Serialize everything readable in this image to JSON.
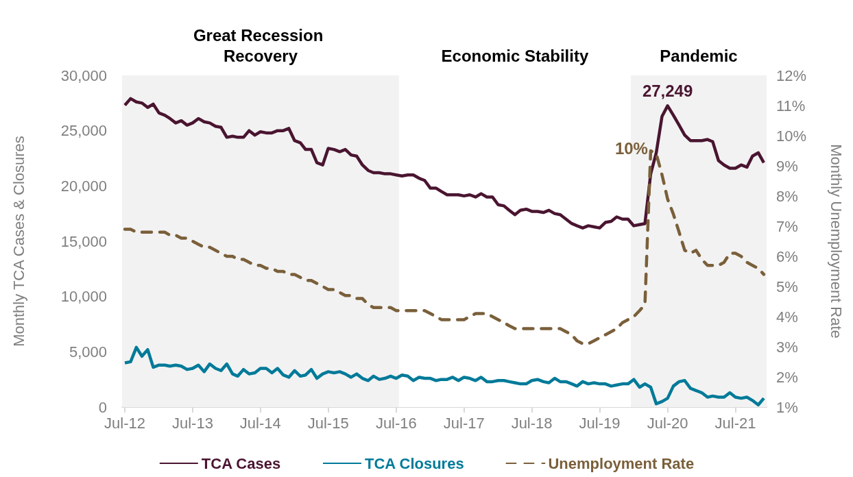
{
  "chart_data": {
    "type": "line",
    "xlabel": null,
    "ylabel": "Monthly TCA Cases & Closures",
    "y2label": "Monthly Unemployment Rate",
    "x": [
      "2012-07",
      "2012-08",
      "2012-09",
      "2012-10",
      "2012-11",
      "2012-12",
      "2013-01",
      "2013-02",
      "2013-03",
      "2013-04",
      "2013-05",
      "2013-06",
      "2013-07",
      "2013-08",
      "2013-09",
      "2013-10",
      "2013-11",
      "2013-12",
      "2014-01",
      "2014-02",
      "2014-03",
      "2014-04",
      "2014-05",
      "2014-06",
      "2014-07",
      "2014-08",
      "2014-09",
      "2014-10",
      "2014-11",
      "2014-12",
      "2015-01",
      "2015-02",
      "2015-03",
      "2015-04",
      "2015-05",
      "2015-06",
      "2015-07",
      "2015-08",
      "2015-09",
      "2015-10",
      "2015-11",
      "2015-12",
      "2016-01",
      "2016-02",
      "2016-03",
      "2016-04",
      "2016-05",
      "2016-06",
      "2016-07",
      "2016-08",
      "2016-09",
      "2016-10",
      "2016-11",
      "2016-12",
      "2017-01",
      "2017-02",
      "2017-03",
      "2017-04",
      "2017-05",
      "2017-06",
      "2017-07",
      "2017-08",
      "2017-09",
      "2017-10",
      "2017-11",
      "2017-12",
      "2018-01",
      "2018-02",
      "2018-03",
      "2018-04",
      "2018-05",
      "2018-06",
      "2018-07",
      "2018-08",
      "2018-09",
      "2018-10",
      "2018-11",
      "2018-12",
      "2019-01",
      "2019-02",
      "2019-03",
      "2019-04",
      "2019-05",
      "2019-06",
      "2019-07",
      "2019-08",
      "2019-09",
      "2019-10",
      "2019-11",
      "2019-12",
      "2020-01",
      "2020-02",
      "2020-03",
      "2020-04",
      "2020-05",
      "2020-06",
      "2020-07",
      "2020-08",
      "2020-09",
      "2020-10",
      "2020-11",
      "2020-12",
      "2021-01",
      "2021-02",
      "2021-03",
      "2021-04",
      "2021-05",
      "2021-06",
      "2021-07",
      "2021-08",
      "2021-09",
      "2021-10",
      "2021-11",
      "2021-12"
    ],
    "series": [
      {
        "name": "TCA Cases",
        "color": "#4a1530",
        "values": [
          27300,
          27900,
          27600,
          27500,
          27100,
          27400,
          26600,
          26400,
          26100,
          25700,
          25900,
          25500,
          25700,
          26100,
          25800,
          25700,
          25400,
          25300,
          24400,
          24500,
          24400,
          24400,
          25000,
          24600,
          24900,
          24800,
          24800,
          25000,
          25000,
          25200,
          24100,
          23900,
          23300,
          23300,
          22100,
          21900,
          23400,
          23300,
          23100,
          23300,
          22800,
          22700,
          21900,
          21400,
          21200,
          21200,
          21100,
          21100,
          21000,
          20900,
          21000,
          21000,
          20700,
          20500,
          19800,
          19800,
          19500,
          19200,
          19200,
          19200,
          19100,
          19200,
          19000,
          19300,
          19000,
          19000,
          18300,
          18200,
          17800,
          17400,
          17800,
          17900,
          17700,
          17700,
          17600,
          17800,
          17500,
          17400,
          17000,
          16600,
          16400,
          16200,
          16400,
          16300,
          16200,
          16700,
          16800,
          17200,
          17000,
          17000,
          16400,
          16500,
          16600,
          21100,
          23000,
          26300,
          27249,
          26400,
          25500,
          24600,
          24100,
          24100,
          24100,
          24200,
          24000,
          22300,
          21900,
          21600,
          21600,
          21900,
          21700,
          22700,
          23000,
          22100
        ]
      },
      {
        "name": "TCA Closures",
        "color": "#007a99",
        "values": [
          4000,
          4100,
          5400,
          4600,
          5200,
          3600,
          3800,
          3800,
          3700,
          3800,
          3700,
          3400,
          3500,
          3800,
          3200,
          3900,
          3500,
          3300,
          3900,
          3000,
          2800,
          3400,
          3000,
          3100,
          3500,
          3500,
          3100,
          3500,
          2900,
          2700,
          3300,
          2800,
          2900,
          3400,
          2600,
          3000,
          3200,
          3100,
          3200,
          3000,
          2700,
          3000,
          2600,
          2400,
          2800,
          2500,
          2600,
          2800,
          2600,
          2900,
          2800,
          2400,
          2700,
          2600,
          2600,
          2400,
          2500,
          2500,
          2700,
          2400,
          2700,
          2600,
          2400,
          2700,
          2300,
          2300,
          2400,
          2400,
          2300,
          2200,
          2100,
          2100,
          2400,
          2500,
          2300,
          2200,
          2600,
          2300,
          2300,
          2100,
          1900,
          2300,
          2100,
          2200,
          2100,
          2100,
          1900,
          2000,
          2100,
          2100,
          2500,
          1800,
          2100,
          1800,
          300,
          500,
          800,
          1900,
          2300,
          2400,
          1700,
          1500,
          1300,
          900,
          1000,
          900,
          900,
          1300,
          900,
          800,
          900,
          600,
          200,
          800
        ]
      },
      {
        "name": "Unemployment Rate",
        "color": "#7a5f3a",
        "axis": "y2",
        "line_style": "dashed",
        "value_labels": [
          null,
          null,
          null,
          null,
          null,
          null,
          null,
          null,
          null,
          null,
          null,
          null,
          null,
          null,
          null,
          null,
          null,
          null,
          null,
          null,
          null,
          null,
          null,
          null,
          null,
          null,
          null,
          null,
          null,
          null,
          null,
          null,
          null,
          null,
          null,
          null,
          null,
          null,
          null,
          null,
          null,
          null,
          null,
          null,
          null,
          null,
          null,
          null,
          null,
          null,
          null,
          null,
          null,
          null,
          null,
          null,
          null,
          null,
          null,
          null,
          null,
          null,
          null,
          null,
          null,
          null,
          null,
          null,
          null,
          null,
          null,
          null,
          null,
          null,
          null,
          null,
          null,
          null,
          null,
          null,
          null,
          null,
          null,
          null,
          null,
          null,
          null,
          null,
          null,
          null,
          null,
          null,
          null,
          "10%",
          null,
          null,
          null,
          null,
          null,
          null,
          null,
          null,
          null,
          null,
          null,
          null,
          null,
          null,
          null,
          null,
          null,
          null,
          null,
          null
        ],
        "values": [
          6.9,
          6.9,
          6.8,
          6.8,
          6.8,
          6.8,
          6.8,
          6.8,
          6.7,
          6.7,
          6.6,
          6.6,
          6.5,
          6.4,
          6.3,
          6.3,
          6.2,
          6.1,
          6.0,
          6.0,
          5.9,
          5.9,
          5.8,
          5.7,
          5.7,
          5.6,
          5.6,
          5.5,
          5.5,
          5.4,
          5.4,
          5.3,
          5.2,
          5.2,
          5.1,
          5.0,
          4.9,
          4.9,
          4.8,
          4.7,
          4.7,
          4.6,
          4.6,
          4.4,
          4.3,
          4.3,
          4.3,
          4.3,
          4.2,
          4.2,
          4.2,
          4.2,
          4.2,
          4.2,
          4.1,
          4.0,
          3.9,
          3.9,
          3.9,
          3.9,
          3.9,
          4.0,
          4.1,
          4.1,
          4.1,
          4.0,
          3.9,
          3.8,
          3.7,
          3.6,
          3.6,
          3.6,
          3.6,
          3.6,
          3.6,
          3.6,
          3.6,
          3.6,
          3.5,
          3.4,
          3.2,
          3.1,
          3.1,
          3.2,
          3.3,
          3.4,
          3.5,
          3.6,
          3.8,
          3.9,
          4.0,
          4.2,
          4.4,
          9.5,
          9.4,
          8.7,
          7.9,
          7.4,
          6.8,
          6.2,
          6.1,
          6.2,
          5.9,
          5.7,
          5.7,
          5.7,
          5.8,
          6.1,
          6.1,
          6.0,
          5.8,
          5.7,
          5.6,
          5.4
        ]
      }
    ],
    "xlim": [
      "2012-06-16",
      "2021-12-16"
    ],
    "xticks": [
      {
        "value": "2012-07",
        "label": "Jul-12"
      },
      {
        "value": "2013-07",
        "label": "Jul-13"
      },
      {
        "value": "2014-07",
        "label": "Jul-14"
      },
      {
        "value": "2015-07",
        "label": "Jul-15"
      },
      {
        "value": "2016-07",
        "label": "Jul-16"
      },
      {
        "value": "2017-07",
        "label": "Jul-17"
      },
      {
        "value": "2018-07",
        "label": "Jul-18"
      },
      {
        "value": "2019-07",
        "label": "Jul-19"
      },
      {
        "value": "2020-07",
        "label": "Jul-20"
      },
      {
        "value": "2021-07",
        "label": "Jul-21"
      }
    ],
    "ylim": [
      0,
      30000
    ],
    "yticks": [
      {
        "value": 0,
        "label": "0"
      },
      {
        "value": 5000,
        "label": "5,000"
      },
      {
        "value": 10000,
        "label": "10,000"
      },
      {
        "value": 15000,
        "label": "15,000"
      },
      {
        "value": 20000,
        "label": "20,000"
      },
      {
        "value": 25000,
        "label": "25,000"
      },
      {
        "value": 30000,
        "label": "30,000"
      }
    ],
    "y2lim": [
      1,
      12
    ],
    "y2ticks": [
      {
        "value": 1,
        "label": "1%"
      },
      {
        "value": 2,
        "label": "2%"
      },
      {
        "value": 3,
        "label": "3%"
      },
      {
        "value": 4,
        "label": "4%"
      },
      {
        "value": 5,
        "label": "5%"
      },
      {
        "value": 6,
        "label": "6%"
      },
      {
        "value": 7,
        "label": "7%"
      },
      {
        "value": 8,
        "label": "8%"
      },
      {
        "value": 9,
        "label": "9%"
      },
      {
        "value": 10,
        "label": "10%"
      },
      {
        "value": 11,
        "label": "11%"
      },
      {
        "value": 12,
        "label": "12%"
      }
    ],
    "bands": [
      {
        "axis": "x",
        "from": "2012-06-16",
        "to": "2016-07-16",
        "label": "Great Recession Recovery",
        "color": "#f2f2f2"
      },
      {
        "axis": "x",
        "from": "2016-07-16",
        "to": "2019-12-16",
        "label": "Economic Stability",
        "color": "#ffffff"
      },
      {
        "axis": "x",
        "from": "2019-12-16",
        "to": "2021-12-16",
        "label": "Pandemic",
        "color": "#f2f2f2"
      }
    ],
    "annotations": [
      {
        "text": "27,249",
        "x": "2020-07",
        "y": 27249
      }
    ],
    "marker": "none",
    "legend": "bottom"
  }
}
